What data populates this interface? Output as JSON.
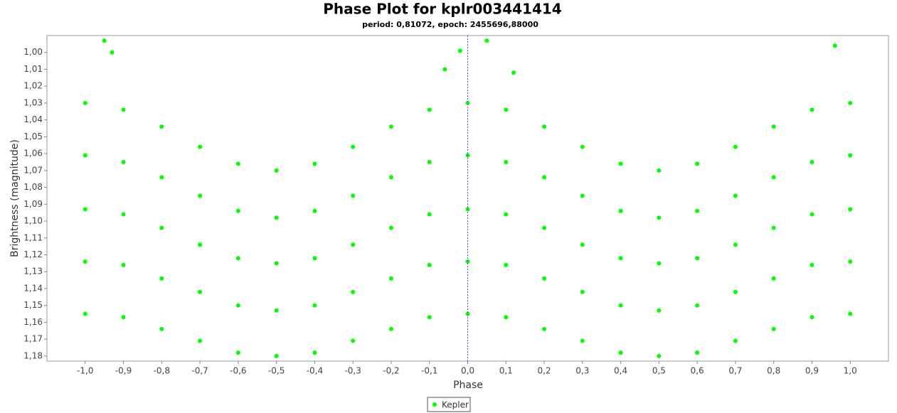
{
  "chart_data": {
    "type": "scatter",
    "title": "Phase Plot for kplr003441414",
    "subtitle": "period: 0,81072, epoch: 2455696,88000",
    "x_label": "Phase",
    "y_label": "Brightness (magnitude)",
    "y_inverted": true,
    "xlim": [
      -1.1,
      1.1
    ],
    "ylim": [
      0.99,
      1.183
    ],
    "xticks": [
      {
        "value": -1.0,
        "label": "-1,0"
      },
      {
        "value": -0.9,
        "label": "-0,9"
      },
      {
        "value": -0.8,
        "label": "-0,8"
      },
      {
        "value": -0.7,
        "label": "-0,7"
      },
      {
        "value": -0.6,
        "label": "-0,6"
      },
      {
        "value": -0.5,
        "label": "-0,5"
      },
      {
        "value": -0.4,
        "label": "-0,4"
      },
      {
        "value": -0.3,
        "label": "-0,3"
      },
      {
        "value": -0.2,
        "label": "-0,2"
      },
      {
        "value": -0.1,
        "label": "-0,1"
      },
      {
        "value": 0.0,
        "label": "0,0"
      },
      {
        "value": 0.1,
        "label": "0,1"
      },
      {
        "value": 0.2,
        "label": "0,2"
      },
      {
        "value": 0.3,
        "label": "0,3"
      },
      {
        "value": 0.4,
        "label": "0,4"
      },
      {
        "value": 0.5,
        "label": "0,5"
      },
      {
        "value": 0.6,
        "label": "0,6"
      },
      {
        "value": 0.7,
        "label": "0,7"
      },
      {
        "value": 0.8,
        "label": "0,8"
      },
      {
        "value": 0.9,
        "label": "0,9"
      },
      {
        "value": 1.0,
        "label": "1,0"
      }
    ],
    "yticks": [
      {
        "value": 1.0,
        "label": "1,00"
      },
      {
        "value": 1.01,
        "label": "1,01"
      },
      {
        "value": 1.02,
        "label": "1,02"
      },
      {
        "value": 1.03,
        "label": "1,03"
      },
      {
        "value": 1.04,
        "label": "1,04"
      },
      {
        "value": 1.05,
        "label": "1,05"
      },
      {
        "value": 1.06,
        "label": "1,06"
      },
      {
        "value": 1.07,
        "label": "1,07"
      },
      {
        "value": 1.08,
        "label": "1,08"
      },
      {
        "value": 1.09,
        "label": "1,09"
      },
      {
        "value": 1.1,
        "label": "1,10"
      },
      {
        "value": 1.11,
        "label": "1,11"
      },
      {
        "value": 1.12,
        "label": "1,12"
      },
      {
        "value": 1.13,
        "label": "1,13"
      },
      {
        "value": 1.14,
        "label": "1,14"
      },
      {
        "value": 1.15,
        "label": "1,15"
      },
      {
        "value": 1.16,
        "label": "1,16"
      },
      {
        "value": 1.17,
        "label": "1,17"
      },
      {
        "value": 1.18,
        "label": "1,18"
      }
    ],
    "epoch_line": 0.0,
    "series": [
      {
        "name": "Kepler",
        "color": "#00ff00",
        "x": [
          -1.0,
          -1.0,
          -1.0,
          -1.0,
          -1.0,
          -0.9,
          -0.9,
          -0.9,
          -0.9,
          -0.9,
          -0.8,
          -0.8,
          -0.8,
          -0.8,
          -0.8,
          -0.7,
          -0.7,
          -0.7,
          -0.7,
          -0.7,
          -0.6,
          -0.6,
          -0.6,
          -0.6,
          -0.6,
          -0.5,
          -0.5,
          -0.5,
          -0.5,
          -0.5,
          -0.4,
          -0.4,
          -0.4,
          -0.4,
          -0.4,
          -0.3,
          -0.3,
          -0.3,
          -0.3,
          -0.3,
          -0.2,
          -0.2,
          -0.2,
          -0.2,
          -0.2,
          -0.1,
          -0.1,
          -0.1,
          -0.1,
          -0.1,
          0.0,
          0.0,
          0.0,
          0.0,
          0.0,
          0.1,
          0.1,
          0.1,
          0.1,
          0.1,
          0.2,
          0.2,
          0.2,
          0.2,
          0.2,
          0.3,
          0.3,
          0.3,
          0.3,
          0.3,
          0.4,
          0.4,
          0.4,
          0.4,
          0.4,
          0.5,
          0.5,
          0.5,
          0.5,
          0.5,
          0.6,
          0.6,
          0.6,
          0.6,
          0.6,
          0.7,
          0.7,
          0.7,
          0.7,
          0.7,
          0.8,
          0.8,
          0.8,
          0.8,
          0.8,
          0.9,
          0.9,
          0.9,
          0.9,
          0.9,
          1.0,
          1.0,
          1.0,
          1.0,
          1.0,
          -0.95,
          -0.93,
          -0.02,
          0.05,
          0.96,
          -0.06,
          0.12
        ],
        "values": [
          1.03,
          1.061,
          1.093,
          1.124,
          1.155,
          1.034,
          1.065,
          1.096,
          1.126,
          1.157,
          1.044,
          1.074,
          1.104,
          1.134,
          1.164,
          1.056,
          1.085,
          1.114,
          1.142,
          1.171,
          1.066,
          1.094,
          1.122,
          1.15,
          1.178,
          1.07,
          1.098,
          1.125,
          1.153,
          1.18,
          1.066,
          1.094,
          1.122,
          1.15,
          1.178,
          1.056,
          1.085,
          1.114,
          1.142,
          1.171,
          1.044,
          1.074,
          1.104,
          1.134,
          1.164,
          1.034,
          1.065,
          1.096,
          1.126,
          1.157,
          1.03,
          1.061,
          1.093,
          1.124,
          1.155,
          1.034,
          1.065,
          1.096,
          1.126,
          1.157,
          1.044,
          1.074,
          1.104,
          1.134,
          1.164,
          1.056,
          1.085,
          1.114,
          1.142,
          1.171,
          1.066,
          1.094,
          1.122,
          1.15,
          1.178,
          1.07,
          1.098,
          1.125,
          1.153,
          1.18,
          1.066,
          1.094,
          1.122,
          1.15,
          1.178,
          1.056,
          1.085,
          1.114,
          1.142,
          1.171,
          1.044,
          1.074,
          1.104,
          1.134,
          1.164,
          1.034,
          1.065,
          1.096,
          1.126,
          1.157,
          1.03,
          1.061,
          1.093,
          1.124,
          1.155,
          0.993,
          1.0,
          0.999,
          0.993,
          0.996,
          1.01,
          1.012
        ]
      }
    ]
  }
}
